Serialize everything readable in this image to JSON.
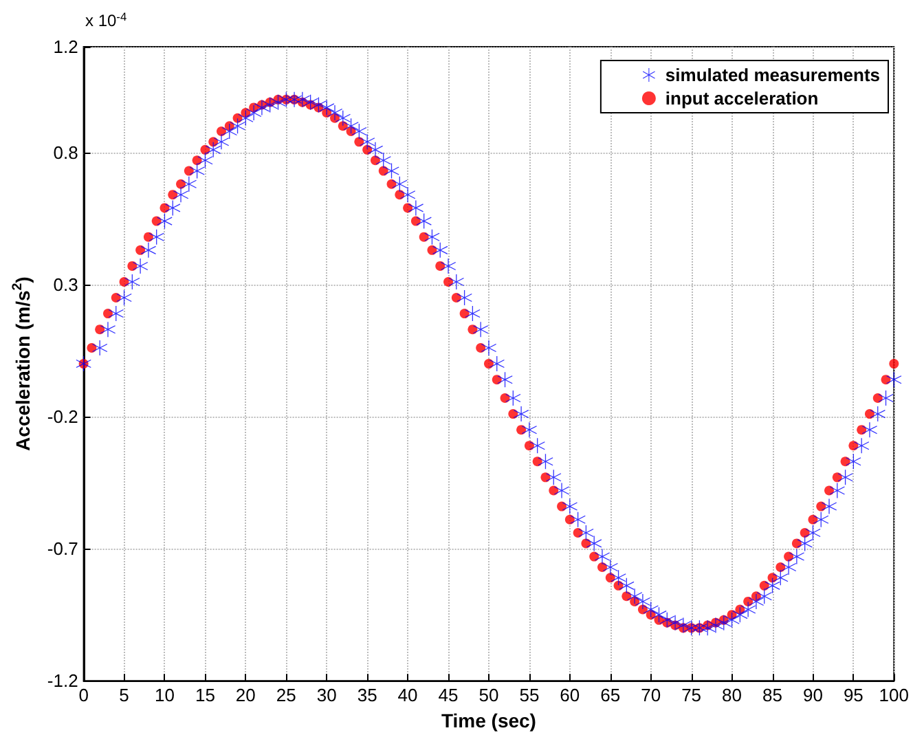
{
  "chart_data": {
    "type": "scatter",
    "xlabel": "Time (sec)",
    "ylabel": "Acceleration (m/s$^{2}$)",
    "annotations": [
      "x 10$^{-4}$"
    ],
    "xlim": [
      0,
      100
    ],
    "xticks": [
      0,
      5,
      10,
      15,
      20,
      25,
      30,
      35,
      40,
      45,
      50,
      55,
      60,
      65,
      70,
      75,
      80,
      85,
      90,
      95,
      100
    ],
    "ylim": [
      -1.2,
      1.2
    ],
    "yticks": [
      -1.2,
      -0.7,
      -0.2,
      0.3,
      0.8,
      1.2
    ],
    "grid": true,
    "legend": "top right",
    "series": [
      {
        "name": "simulated measurements",
        "color": "#0000ff",
        "marker": "star",
        "x": [
          0,
          2,
          3,
          4,
          5,
          6,
          7,
          8,
          9,
          10,
          11,
          12,
          13,
          14,
          15,
          16,
          17,
          18,
          19,
          20,
          21,
          22,
          23,
          24,
          25,
          26,
          27,
          28,
          29,
          30,
          31,
          32,
          33,
          34,
          35,
          36,
          37,
          38,
          39,
          40,
          41,
          42,
          43,
          44,
          45,
          46,
          47,
          48,
          49,
          50,
          51,
          52,
          53,
          54,
          55,
          56,
          57,
          58,
          59,
          60,
          61,
          62,
          63,
          64,
          65,
          66,
          67,
          68,
          69,
          70,
          71,
          72,
          73,
          74,
          75,
          76,
          77,
          78,
          79,
          80,
          81,
          82,
          83,
          84,
          85,
          86,
          87,
          88,
          89,
          90,
          91,
          92,
          93,
          94,
          95,
          96,
          97,
          98,
          99,
          100
        ],
        "values": [
          0,
          0.06,
          0.13,
          0.19,
          0.25,
          0.31,
          0.37,
          0.43,
          0.48,
          0.54,
          0.59,
          0.64,
          0.68,
          0.73,
          0.77,
          0.81,
          0.84,
          0.88,
          0.9,
          0.93,
          0.95,
          0.97,
          0.98,
          0.99,
          1,
          1,
          1,
          0.99,
          0.98,
          0.97,
          0.95,
          0.93,
          0.9,
          0.88,
          0.84,
          0.81,
          0.77,
          0.73,
          0.68,
          0.64,
          0.59,
          0.54,
          0.48,
          0.43,
          0.37,
          0.31,
          0.25,
          0.19,
          0.13,
          0.06,
          0,
          -0.06,
          -0.13,
          -0.19,
          -0.25,
          -0.31,
          -0.37,
          -0.43,
          -0.48,
          -0.54,
          -0.59,
          -0.64,
          -0.68,
          -0.73,
          -0.77,
          -0.81,
          -0.84,
          -0.88,
          -0.9,
          -0.93,
          -0.95,
          -0.97,
          -0.98,
          -0.99,
          -1,
          -1,
          -1,
          -0.99,
          -0.98,
          -0.97,
          -0.95,
          -0.93,
          -0.9,
          -0.88,
          -0.84,
          -0.81,
          -0.77,
          -0.73,
          -0.68,
          -0.64,
          -0.59,
          -0.54,
          -0.48,
          -0.43,
          -0.37,
          -0.31,
          -0.25,
          -0.19,
          -0.13,
          -0.06
        ]
      },
      {
        "name": "input acceleration",
        "color": "#ff0000",
        "marker": "circle",
        "x": [
          0,
          1,
          2,
          3,
          4,
          5,
          6,
          7,
          8,
          9,
          10,
          11,
          12,
          13,
          14,
          15,
          16,
          17,
          18,
          19,
          20,
          21,
          22,
          23,
          24,
          25,
          26,
          27,
          28,
          29,
          30,
          31,
          32,
          33,
          34,
          35,
          36,
          37,
          38,
          39,
          40,
          41,
          42,
          43,
          44,
          45,
          46,
          47,
          48,
          49,
          50,
          51,
          52,
          53,
          54,
          55,
          56,
          57,
          58,
          59,
          60,
          61,
          62,
          63,
          64,
          65,
          66,
          67,
          68,
          69,
          70,
          71,
          72,
          73,
          74,
          75,
          76,
          77,
          78,
          79,
          80,
          81,
          82,
          83,
          84,
          85,
          86,
          87,
          88,
          89,
          90,
          91,
          92,
          93,
          94,
          95,
          96,
          97,
          98,
          99,
          100
        ],
        "values": [
          0,
          0.06,
          0.13,
          0.19,
          0.25,
          0.31,
          0.37,
          0.43,
          0.48,
          0.54,
          0.59,
          0.64,
          0.68,
          0.73,
          0.77,
          0.81,
          0.84,
          0.88,
          0.9,
          0.93,
          0.95,
          0.97,
          0.98,
          0.99,
          1,
          1,
          1,
          0.99,
          0.98,
          0.97,
          0.95,
          0.93,
          0.9,
          0.88,
          0.84,
          0.81,
          0.77,
          0.73,
          0.68,
          0.64,
          0.59,
          0.54,
          0.48,
          0.43,
          0.37,
          0.31,
          0.25,
          0.19,
          0.13,
          0.06,
          0,
          -0.06,
          -0.13,
          -0.19,
          -0.25,
          -0.31,
          -0.37,
          -0.43,
          -0.48,
          -0.54,
          -0.59,
          -0.64,
          -0.68,
          -0.73,
          -0.77,
          -0.81,
          -0.84,
          -0.88,
          -0.9,
          -0.93,
          -0.95,
          -0.97,
          -0.98,
          -0.99,
          -1,
          -1,
          -1,
          -0.99,
          -0.98,
          -0.97,
          -0.95,
          -0.93,
          -0.9,
          -0.88,
          -0.84,
          -0.81,
          -0.77,
          -0.73,
          -0.68,
          -0.64,
          -0.59,
          -0.54,
          -0.48,
          -0.43,
          -0.37,
          -0.31,
          -0.25,
          -0.19,
          -0.13,
          -0.06,
          0
        ]
      }
    ]
  }
}
